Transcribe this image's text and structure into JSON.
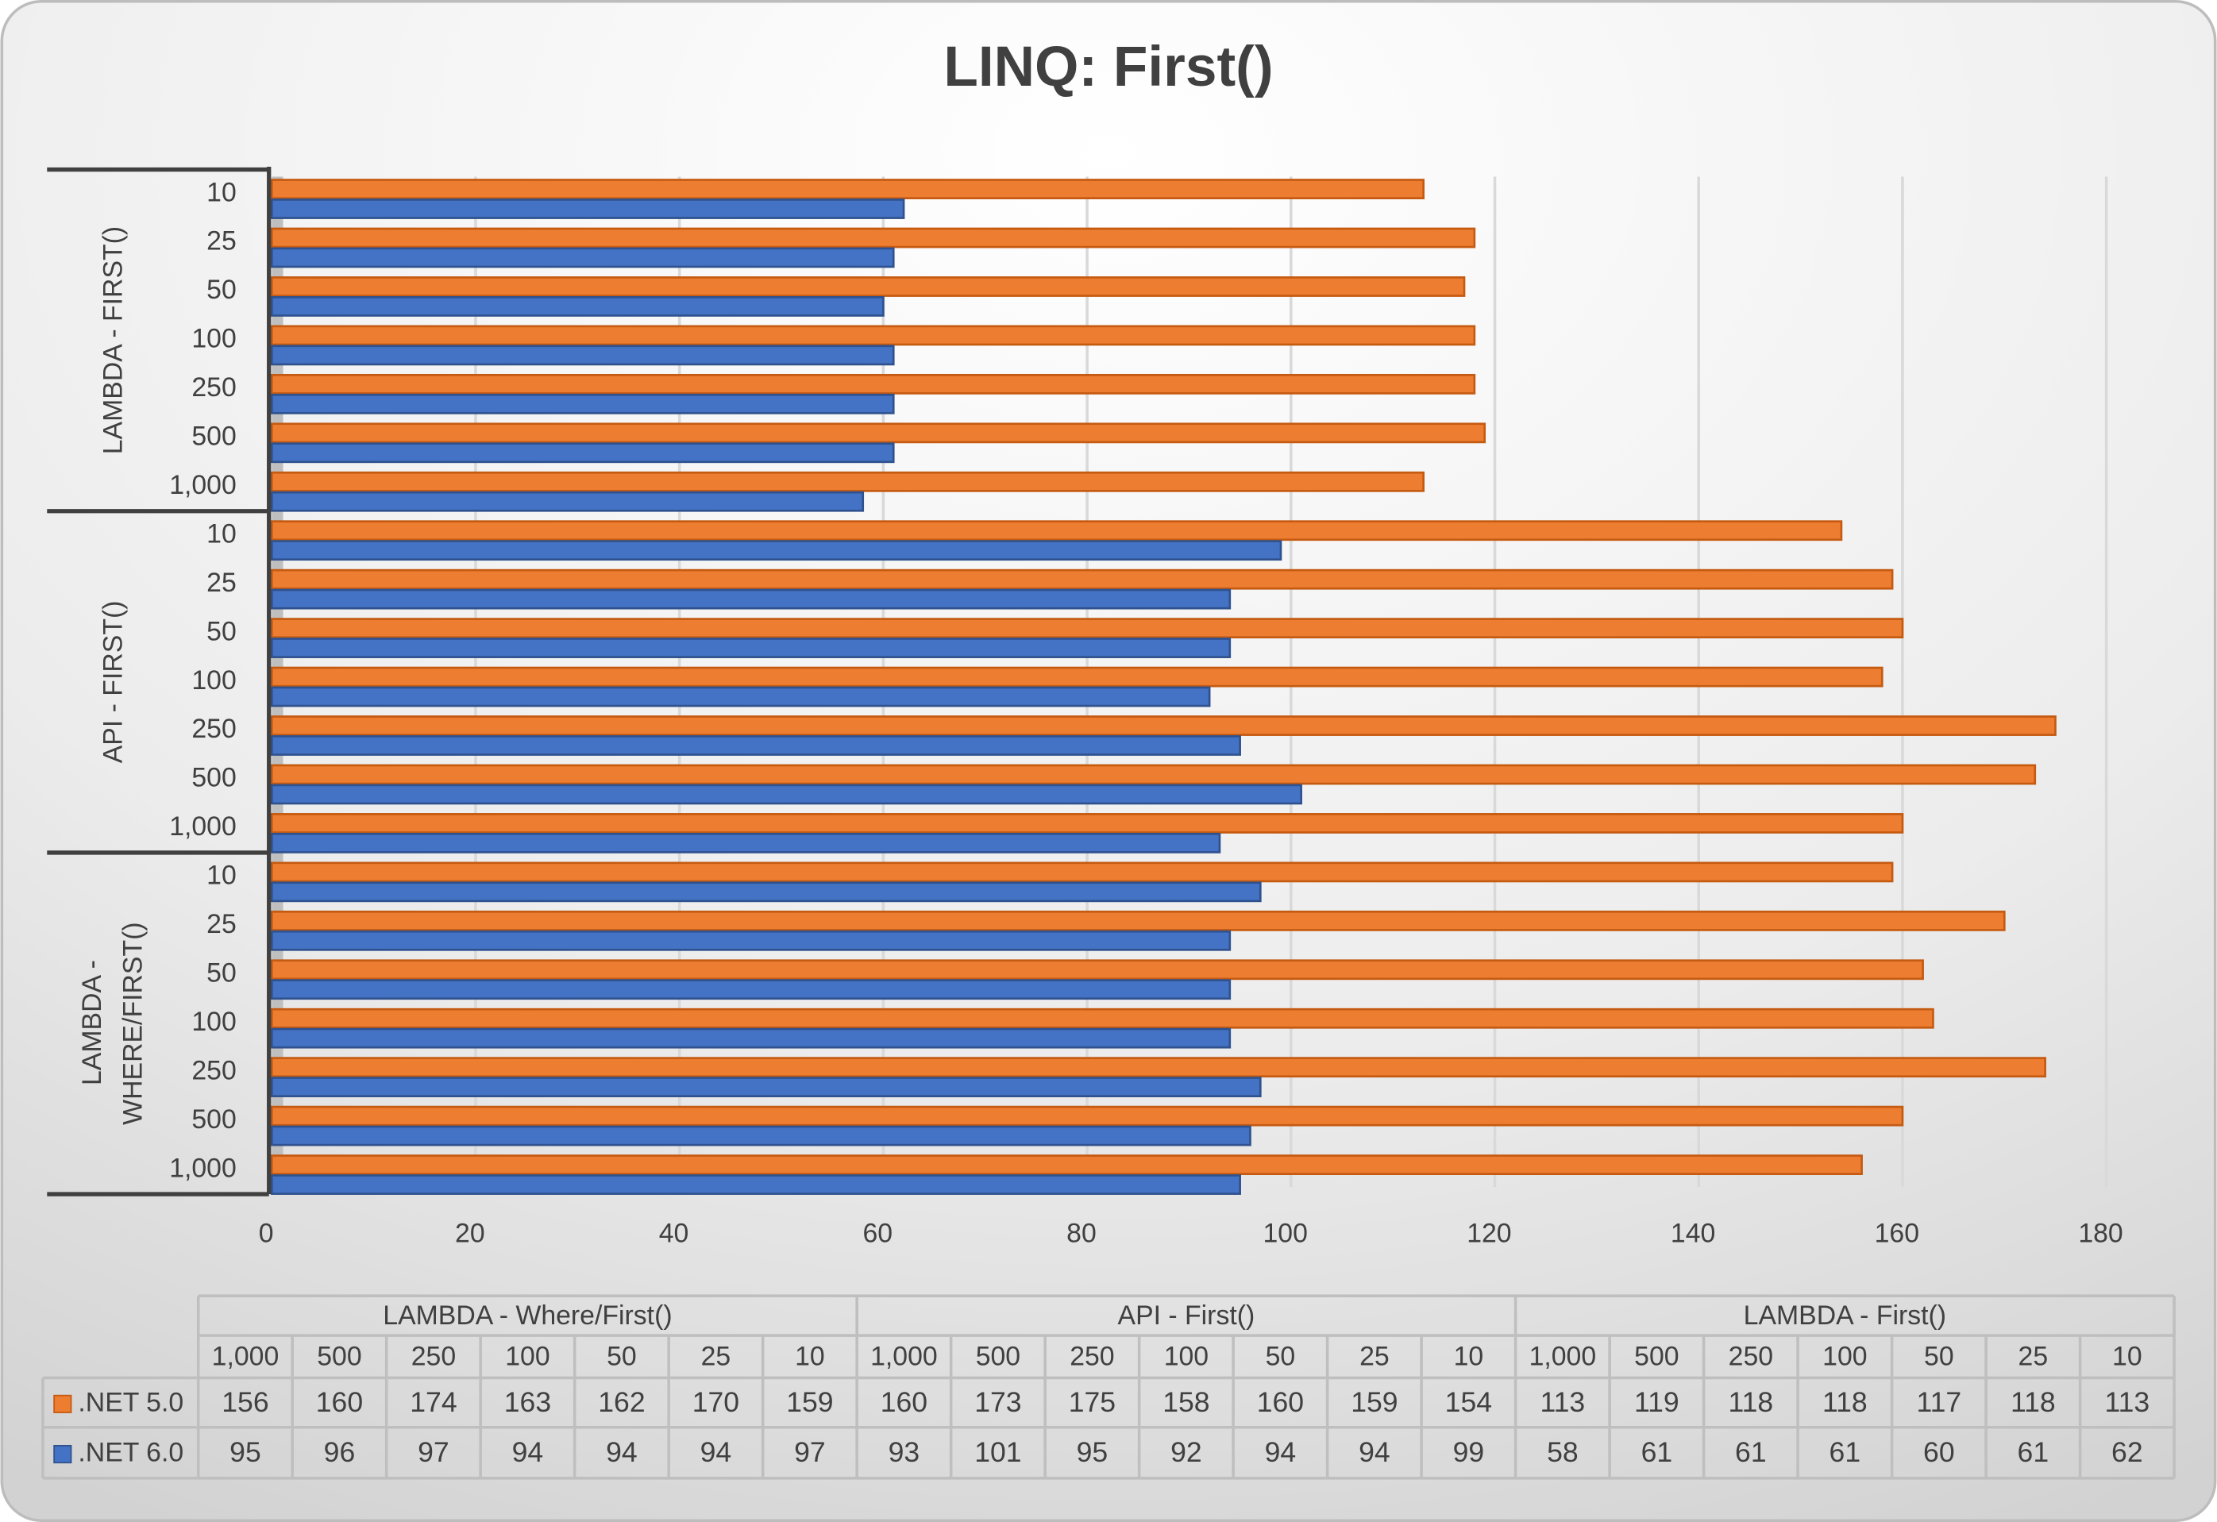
{
  "chart_data": {
    "type": "bar",
    "orientation": "horizontal",
    "title": "LINQ: First()",
    "groups": [
      "LAMBDA - Where/First()",
      "API - First()",
      "LAMBDA - First()"
    ],
    "categories": [
      "1,000",
      "500",
      "250",
      "100",
      "50",
      "25",
      "10",
      "1,000",
      "500",
      "250",
      "100",
      "50",
      "25",
      "10",
      "1,000",
      "500",
      "250",
      "100",
      "50",
      "25",
      "10"
    ],
    "series": [
      {
        "name": ".NET 5.0",
        "color": "#ED7D31",
        "values": [
          156,
          160,
          174,
          163,
          162,
          170,
          159,
          160,
          173,
          175,
          158,
          160,
          159,
          154,
          113,
          119,
          118,
          118,
          117,
          118,
          113
        ]
      },
      {
        "name": ".NET 6.0",
        "color": "#4472C4",
        "values": [
          95,
          96,
          97,
          94,
          94,
          94,
          97,
          93,
          101,
          95,
          92,
          94,
          94,
          99,
          58,
          61,
          61,
          61,
          60,
          61,
          62
        ]
      }
    ],
    "xlim": [
      0,
      180
    ],
    "xticks": [
      0,
      20,
      40,
      60,
      80,
      100,
      120,
      140,
      160,
      180
    ],
    "grid": true,
    "data_table": true
  }
}
